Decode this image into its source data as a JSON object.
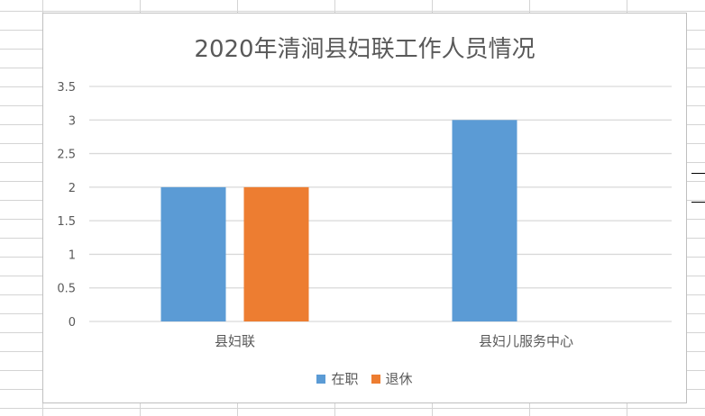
{
  "chart_data": {
    "type": "bar",
    "title": "2020年清涧县妇联工作人员情况",
    "categories": [
      "县妇联",
      "县妇儿服务中心"
    ],
    "series": [
      {
        "name": "在职",
        "values": [
          2,
          3
        ],
        "color": "#5B9BD5"
      },
      {
        "name": "退休",
        "values": [
          2,
          0
        ],
        "color": "#ED7D31"
      }
    ],
    "ylim": [
      0,
      3.5
    ],
    "yticks": [
      "0",
      "0.5",
      "1",
      "1.5",
      "2",
      "2.5",
      "3",
      "3.5"
    ],
    "grid": true,
    "legend_position": "bottom",
    "xlabel": "",
    "ylabel": ""
  }
}
